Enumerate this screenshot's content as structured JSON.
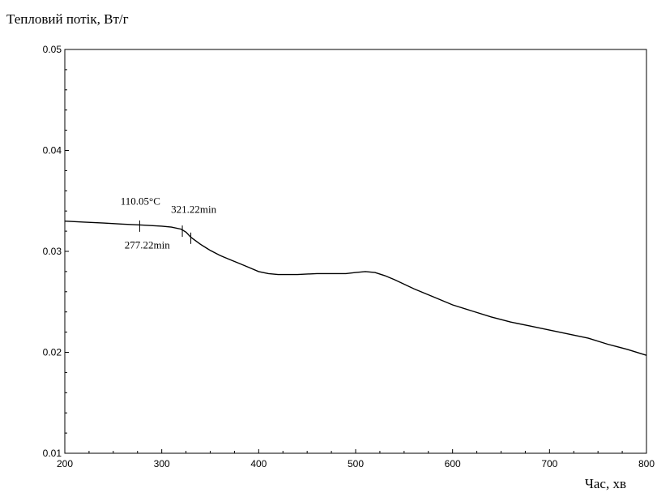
{
  "chart_data": {
    "type": "line",
    "ylabel": "Тепловий потік, Вт/г",
    "xlabel": "Час, хв",
    "xlim": [
      200,
      800
    ],
    "ylim": [
      0.01,
      0.05
    ],
    "x_ticks": [
      "200",
      "300",
      "400",
      "500",
      "600",
      "700",
      "800"
    ],
    "y_ticks": [
      "0.01",
      "0.02",
      "0.03",
      "0.04",
      "0.05"
    ],
    "series": [
      {
        "x": [
          200,
          220,
          240,
          260,
          280,
          300,
          310,
          320,
          325,
          330,
          340,
          350,
          360,
          370,
          380,
          390,
          400,
          410,
          420,
          440,
          460,
          480,
          490,
          500,
          510,
          520,
          530,
          540,
          560,
          580,
          600,
          620,
          640,
          660,
          680,
          700,
          720,
          740,
          760,
          780,
          800
        ],
        "y": [
          0.033,
          0.0329,
          0.0328,
          0.0327,
          0.0326,
          0.0325,
          0.0324,
          0.0322,
          0.0319,
          0.0314,
          0.0307,
          0.0301,
          0.0296,
          0.0292,
          0.0288,
          0.0284,
          0.028,
          0.0278,
          0.0277,
          0.0277,
          0.0278,
          0.0278,
          0.0278,
          0.0279,
          0.028,
          0.0279,
          0.0276,
          0.0272,
          0.0263,
          0.0255,
          0.0247,
          0.0241,
          0.0235,
          0.023,
          0.0226,
          0.0222,
          0.0218,
          0.0214,
          0.0208,
          0.0203,
          0.0197
        ]
      }
    ],
    "annotations": [
      {
        "text": "110.05°C",
        "x": 278,
        "y": 0.0346
      },
      {
        "text": "321.22min",
        "x": 333,
        "y": 0.0338
      },
      {
        "text": "277.22min",
        "x": 285,
        "y": 0.0303
      }
    ],
    "markers": [
      {
        "x": 277.22,
        "y": 0.0325
      },
      {
        "x": 321.22,
        "y": 0.032
      },
      {
        "x": 330,
        "y": 0.0313
      }
    ]
  }
}
